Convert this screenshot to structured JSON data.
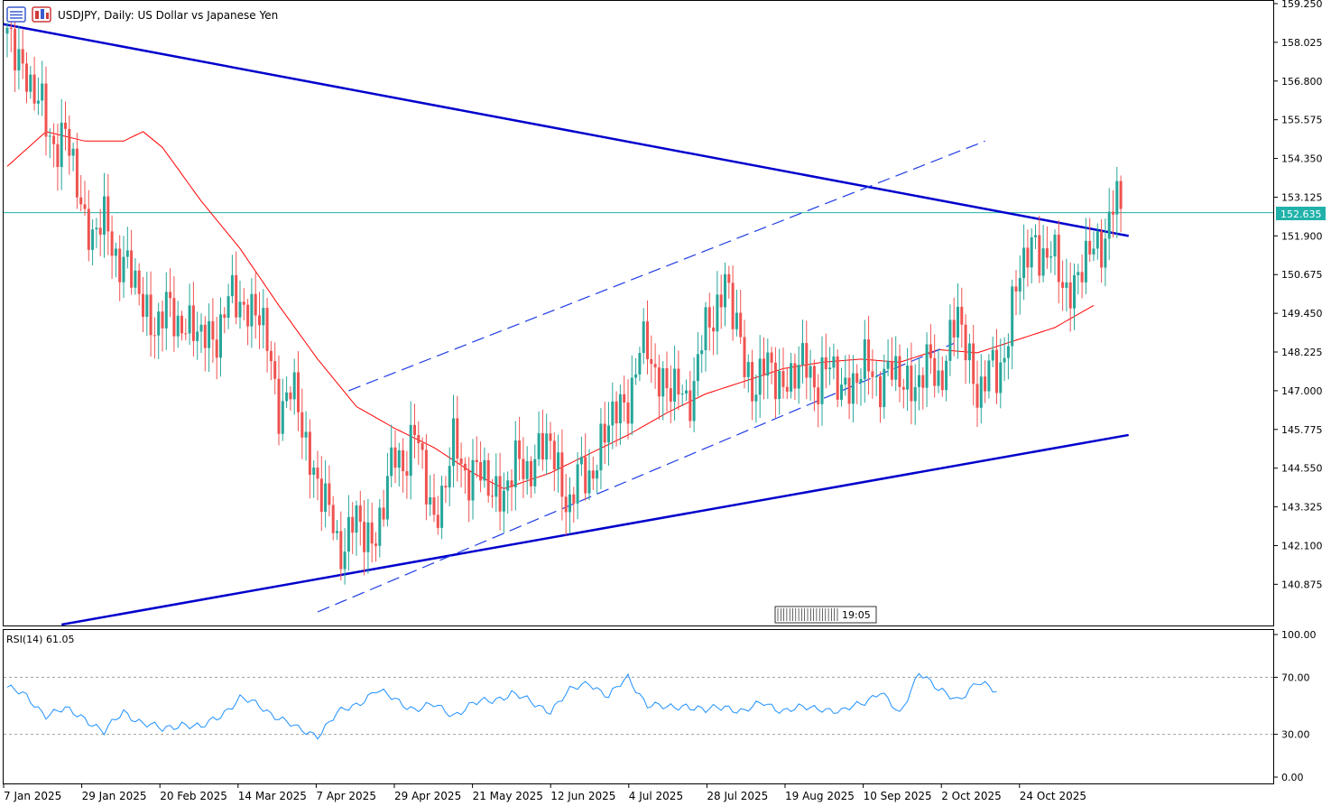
{
  "header": {
    "title": "USDJPY, Daily:  US Dollar vs Japanese Yen"
  },
  "time_label": "19:05",
  "rsi": {
    "label": "RSI(14) 61.05"
  },
  "colors": {
    "bull": "#26a69a",
    "bear": "#ef5350",
    "ma": "#ff0000",
    "trendline": "#0000cd",
    "channel": "#1f3ce6",
    "price_line": "#20b2aa",
    "rsi_line": "#1e90ff",
    "level_line": "#a0a0a0"
  },
  "chart_data": [
    {
      "type": "candlestick",
      "title": "USDJPY, Daily:  US Dollar vs Japanese Yen",
      "ylim": [
        139.6,
        159.25
      ],
      "y_ticks": [
        "159.250",
        "158.025",
        "156.800",
        "155.575",
        "154.350",
        "153.125",
        "151.900",
        "150.675",
        "149.450",
        "148.225",
        "147.000",
        "145.775",
        "144.550",
        "143.325",
        "142.100",
        "140.875"
      ],
      "x_ticks": [
        "7 Jan 2025",
        "29 Jan 2025",
        "20 Feb 2025",
        "14 Mar 2025",
        "7 Apr 2025",
        "29 Apr 2025",
        "21 May 2025",
        "12 Jun 2025",
        "4 Jul 2025",
        "28 Jul 2025",
        "19 Aug 2025",
        "10 Sep 2025",
        "2 Oct 2025",
        "24 Oct 2025"
      ],
      "current_price": "152.635",
      "series": [
        {
          "name": "Close (approx. weekly closes)",
          "values": [
            [
              0,
              158.1
            ],
            [
              5,
              157.2
            ],
            [
              10,
              155.2
            ],
            [
              15,
              155.0
            ],
            [
              20,
              152.4
            ],
            [
              25,
              152.0
            ],
            [
              30,
              151.2
            ],
            [
              35,
              149.6
            ],
            [
              40,
              149.2
            ],
            [
              45,
              149.4
            ],
            [
              50,
              148.5
            ],
            [
              55,
              149.2
            ],
            [
              60,
              150.0
            ],
            [
              65,
              149.3
            ],
            [
              70,
              146.8
            ],
            [
              75,
              146.5
            ],
            [
              80,
              144.0
            ],
            [
              85,
              142.3
            ],
            [
              90,
              142.6
            ],
            [
              95,
              142.5
            ],
            [
              100,
              144.8
            ],
            [
              105,
              145.5
            ],
            [
              110,
              143.0
            ],
            [
              115,
              145.0
            ],
            [
              120,
              144.5
            ],
            [
              125,
              143.8
            ],
            [
              130,
              144.2
            ],
            [
              135,
              144.9
            ],
            [
              140,
              145.2
            ],
            [
              145,
              143.5
            ],
            [
              150,
              144.5
            ],
            [
              155,
              145.8
            ],
            [
              160,
              147.0
            ],
            [
              165,
              148.4
            ],
            [
              170,
              147.0
            ],
            [
              175,
              146.8
            ],
            [
              180,
              148.6
            ],
            [
              185,
              150.7
            ],
            [
              190,
              147.6
            ],
            [
              195,
              147.5
            ],
            [
              200,
              147.4
            ],
            [
              205,
              147.6
            ],
            [
              210,
              147.6
            ],
            [
              215,
              147.2
            ],
            [
              220,
              147.5
            ],
            [
              225,
              147.6
            ],
            [
              230,
              147.3
            ],
            [
              235,
              147.4
            ],
            [
              240,
              147.6
            ],
            [
              245,
              149.2
            ],
            [
              250,
              147.2
            ],
            [
              255,
              147.4
            ],
            [
              260,
              150.2
            ],
            [
              265,
              151.9
            ],
            [
              270,
              150.8
            ],
            [
              275,
              150.3
            ],
            [
              280,
              151.5
            ],
            [
              285,
              152.6
            ]
          ]
        },
        {
          "name": "MA",
          "values": [
            [
              0,
              154.1
            ],
            [
              10,
              155.2
            ],
            [
              20,
              154.9
            ],
            [
              30,
              154.9
            ],
            [
              35,
              155.2
            ],
            [
              40,
              154.7
            ],
            [
              50,
              153.0
            ],
            [
              60,
              151.5
            ],
            [
              70,
              149.7
            ],
            [
              80,
              148.0
            ],
            [
              90,
              146.5
            ],
            [
              100,
              145.8
            ],
            [
              110,
              145.2
            ],
            [
              120,
              144.4
            ],
            [
              128,
              143.9
            ],
            [
              140,
              144.4
            ],
            [
              150,
              145.0
            ],
            [
              160,
              145.6
            ],
            [
              170,
              146.3
            ],
            [
              180,
              146.9
            ],
            [
              190,
              147.3
            ],
            [
              200,
              147.7
            ],
            [
              210,
              147.9
            ],
            [
              220,
              148.0
            ],
            [
              230,
              147.9
            ],
            [
              240,
              148.3
            ],
            [
              250,
              148.2
            ],
            [
              260,
              148.6
            ],
            [
              270,
              149.0
            ],
            [
              280,
              149.7
            ]
          ]
        },
        {
          "name": "Upper trendline",
          "values": [
            [
              -1,
              158.6
            ],
            [
              289,
              151.9
            ]
          ]
        },
        {
          "name": "Lower trendline",
          "values": [
            [
              14,
              139.6
            ],
            [
              289,
              145.6
            ]
          ]
        },
        {
          "name": "Channel upper",
          "values": [
            [
              88,
              147.0
            ],
            [
              252,
              154.9
            ]
          ]
        },
        {
          "name": "Channel lower",
          "values": [
            [
              80,
              140.0
            ],
            [
              244,
              148.5
            ]
          ]
        }
      ]
    },
    {
      "type": "line",
      "title": "RSI(14) 61.05",
      "ylim": [
        0,
        100
      ],
      "y_ticks": [
        "100.00",
        "70.00",
        "30.00",
        "0.00"
      ],
      "levels": [
        70,
        30
      ],
      "series": [
        {
          "name": "RSI(14)",
          "values": [
            [
              0,
              63
            ],
            [
              5,
              56
            ],
            [
              10,
              44
            ],
            [
              15,
              47
            ],
            [
              20,
              42
            ],
            [
              25,
              31
            ],
            [
              30,
              46
            ],
            [
              35,
              38
            ],
            [
              40,
              33
            ],
            [
              45,
              38
            ],
            [
              50,
              34
            ],
            [
              55,
              44
            ],
            [
              60,
              55
            ],
            [
              65,
              50
            ],
            [
              70,
              42
            ],
            [
              75,
              33
            ],
            [
              80,
              30
            ],
            [
              85,
              44
            ],
            [
              90,
              51
            ],
            [
              95,
              61
            ],
            [
              100,
              54
            ],
            [
              105,
              48
            ],
            [
              110,
              50
            ],
            [
              115,
              44
            ],
            [
              120,
              51
            ],
            [
              125,
              54
            ],
            [
              130,
              59
            ],
            [
              135,
              52
            ],
            [
              140,
              47
            ],
            [
              145,
              60
            ],
            [
              150,
              67
            ],
            [
              155,
              56
            ],
            [
              160,
              70
            ],
            [
              165,
              51
            ],
            [
              170,
              48
            ],
            [
              175,
              51
            ],
            [
              180,
              46
            ],
            [
              185,
              50
            ],
            [
              190,
              46
            ],
            [
              195,
              52
            ],
            [
              200,
              47
            ],
            [
              205,
              48
            ],
            [
              210,
              49
            ],
            [
              215,
              45
            ],
            [
              220,
              52
            ],
            [
              225,
              60
            ],
            [
              230,
              43
            ],
            [
              235,
              75
            ],
            [
              240,
              60
            ],
            [
              245,
              55
            ],
            [
              250,
              66
            ],
            [
              255,
              60
            ]
          ]
        }
      ]
    }
  ]
}
